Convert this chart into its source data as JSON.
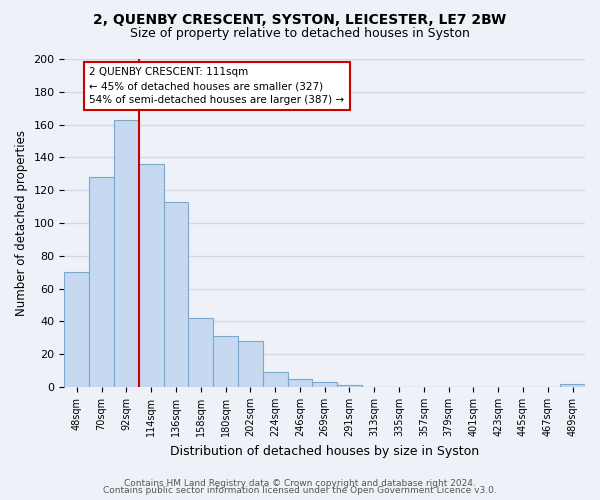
{
  "title": "2, QUENBY CRESCENT, SYSTON, LEICESTER, LE7 2BW",
  "subtitle": "Size of property relative to detached houses in Syston",
  "xlabel": "Distribution of detached houses by size in Syston",
  "ylabel": "Number of detached properties",
  "bar_labels": [
    "48sqm",
    "70sqm",
    "92sqm",
    "114sqm",
    "136sqm",
    "158sqm",
    "180sqm",
    "202sqm",
    "224sqm",
    "246sqm",
    "269sqm",
    "291sqm",
    "313sqm",
    "335sqm",
    "357sqm",
    "379sqm",
    "401sqm",
    "423sqm",
    "445sqm",
    "467sqm",
    "489sqm"
  ],
  "bar_values": [
    70,
    128,
    163,
    136,
    113,
    42,
    31,
    28,
    9,
    5,
    3,
    1,
    0,
    0,
    0,
    0,
    0,
    0,
    0,
    0,
    2
  ],
  "bar_color": "#c6d9f0",
  "bar_edge_color": "#7da8cc",
  "vline_x": 2.5,
  "vline_color": "#cc0000",
  "annotation_title": "2 QUENBY CRESCENT: 111sqm",
  "annotation_line1": "← 45% of detached houses are smaller (327)",
  "annotation_line2": "54% of semi-detached houses are larger (387) →",
  "annotation_box_color": "#ffffff",
  "annotation_box_edge": "#cc0000",
  "ylim": [
    0,
    200
  ],
  "yticks": [
    0,
    20,
    40,
    60,
    80,
    100,
    120,
    140,
    160,
    180,
    200
  ],
  "footer1": "Contains HM Land Registry data © Crown copyright and database right 2024.",
  "footer2": "Contains public sector information licensed under the Open Government Licence v3.0.",
  "bg_color": "#eef2f8",
  "grid_color": "#d0d8e8"
}
